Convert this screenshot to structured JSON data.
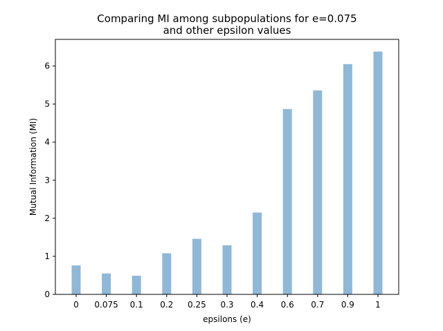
{
  "chart_data": {
    "type": "bar",
    "title_line1": "Comparing MI among subpopulations for e=0.075",
    "title_line2": "and other epsilon values",
    "xlabel": "epsilons (e)",
    "ylabel": "Mutual Information (MI)",
    "categories": [
      "0",
      "0.075",
      "0.1",
      "0.2",
      "0.25",
      "0.3",
      "0.4",
      "0.6",
      "0.7",
      "0.9",
      "1"
    ],
    "values": [
      0.76,
      0.55,
      0.49,
      1.08,
      1.46,
      1.29,
      2.15,
      4.87,
      5.36,
      6.05,
      6.38
    ],
    "ylim": [
      0,
      6.7
    ],
    "yticks": [
      0,
      1,
      2,
      3,
      4,
      5,
      6
    ],
    "bar_color": "#8fb8d8",
    "grid": false,
    "legend": "none"
  }
}
